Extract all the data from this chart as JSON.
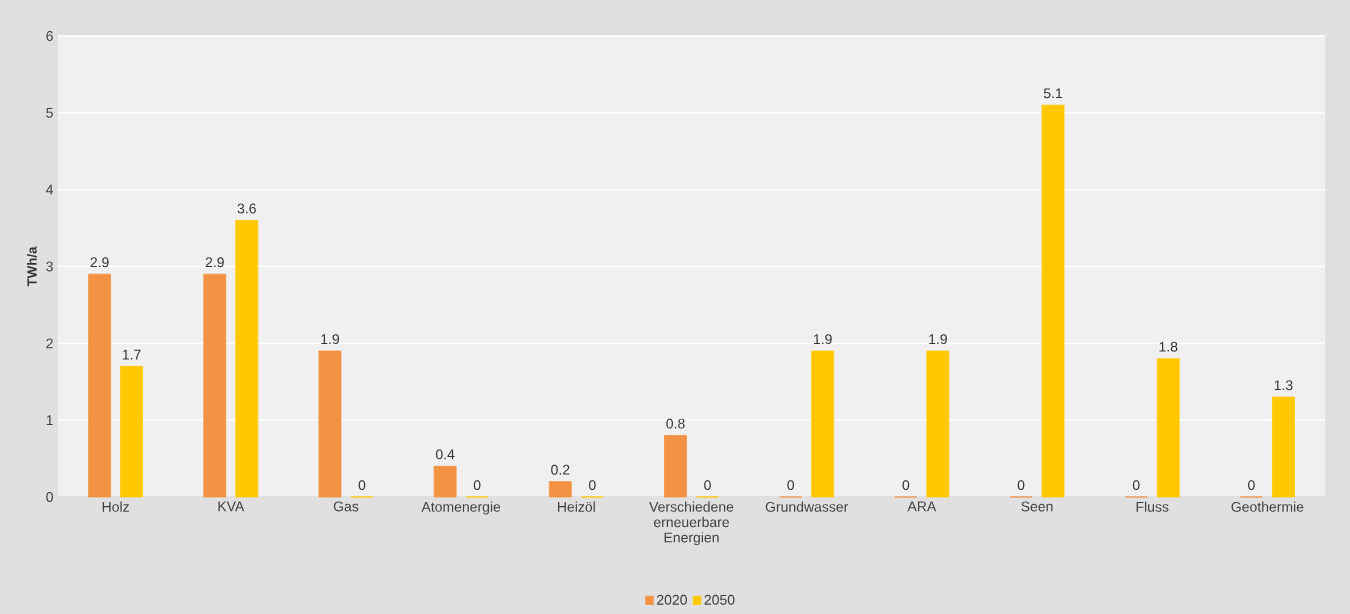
{
  "chart_data": {
    "type": "bar",
    "ylabel": "TWh/a",
    "categories": [
      "Holz",
      "KVA",
      "Gas",
      "Atomenergie",
      "Heizöl",
      "Verschiedene erneuerbare Energien",
      "Grundwasser",
      "ARA",
      "Seen",
      "Fluss",
      "Geothermie"
    ],
    "series": [
      {
        "name": "2020",
        "color": "#f39243",
        "values": [
          2.9,
          2.9,
          1.9,
          0.4,
          0.2,
          0.8,
          0,
          0,
          0,
          0,
          0
        ]
      },
      {
        "name": "2050",
        "color": "#ffc800",
        "values": [
          1.7,
          3.6,
          0,
          0,
          0,
          0,
          1.9,
          1.9,
          5.1,
          1.8,
          1.3
        ]
      }
    ],
    "ylim": [
      0,
      6
    ],
    "yticks": [
      0,
      1,
      2,
      3,
      4,
      5,
      6
    ],
    "grid": "y",
    "legend": "bottom",
    "data_labels": true
  }
}
